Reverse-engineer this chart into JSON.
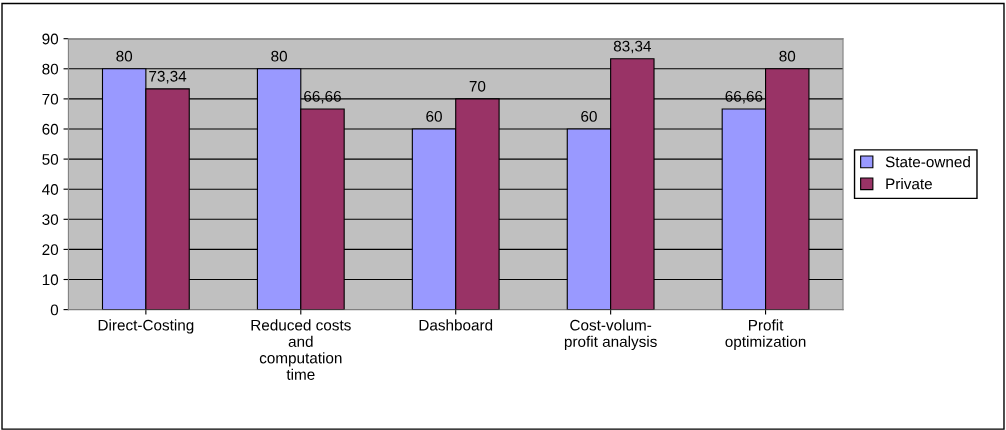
{
  "chart_data": {
    "type": "bar",
    "categories": [
      "Direct-Costing",
      "Reduced costs\nand\ncomputation\ntime",
      "Dashboard",
      "Cost-volum-\nprofit analysis",
      "Profit\noptimization"
    ],
    "series": [
      {
        "name": "State-owned",
        "color": "#9999ff",
        "values": [
          80,
          80,
          60,
          60,
          66.66
        ],
        "value_labels": [
          "80",
          "80",
          "60",
          "60",
          "66,66"
        ]
      },
      {
        "name": "Private",
        "color": "#993366",
        "values": [
          73.34,
          66.66,
          70,
          83.34,
          80
        ],
        "value_labels": [
          "73,34",
          "66,66",
          "70",
          "83,34",
          "80"
        ]
      }
    ],
    "ylim": [
      0,
      90
    ],
    "yticks": [
      0,
      10,
      20,
      30,
      40,
      50,
      60,
      70,
      80,
      90
    ],
    "grid": "y",
    "legend": "right"
  }
}
